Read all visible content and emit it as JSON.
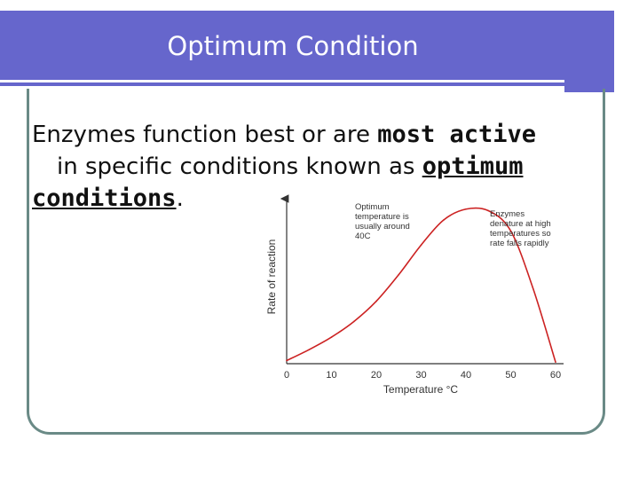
{
  "slide": {
    "title": "Optimum Condition",
    "text": {
      "line1_prefix": "Enzymes function best or are ",
      "line1_emphasis": "most active",
      "line2_prefix": "in specific conditions known as ",
      "line2_emphasis": "optimum",
      "line3_emphasis": "conditions",
      "line3_suffix": "."
    }
  },
  "chart_data": {
    "type": "line",
    "xlabel": "Temperature °C",
    "ylabel": "Rate of reaction",
    "x_ticks": [
      "0",
      "10",
      "20",
      "30",
      "40",
      "50",
      "60"
    ],
    "xlim": [
      0,
      60
    ],
    "ylim": [
      0,
      1
    ],
    "series": [
      {
        "color": "#cc2222",
        "x": [
          0,
          5,
          10,
          15,
          20,
          25,
          30,
          35,
          40,
          45,
          50,
          55,
          60
        ],
        "y": [
          0.02,
          0.09,
          0.17,
          0.27,
          0.4,
          0.57,
          0.76,
          0.92,
          0.99,
          0.98,
          0.85,
          0.48,
          0.01
        ]
      }
    ],
    "annotations": [
      {
        "lines": [
          "Optimum",
          "temperature is",
          "usually around",
          "40C"
        ]
      },
      {
        "lines": [
          "Enzymes",
          "denature at high",
          "temperatures so",
          "rate falls rapidly"
        ]
      }
    ]
  }
}
